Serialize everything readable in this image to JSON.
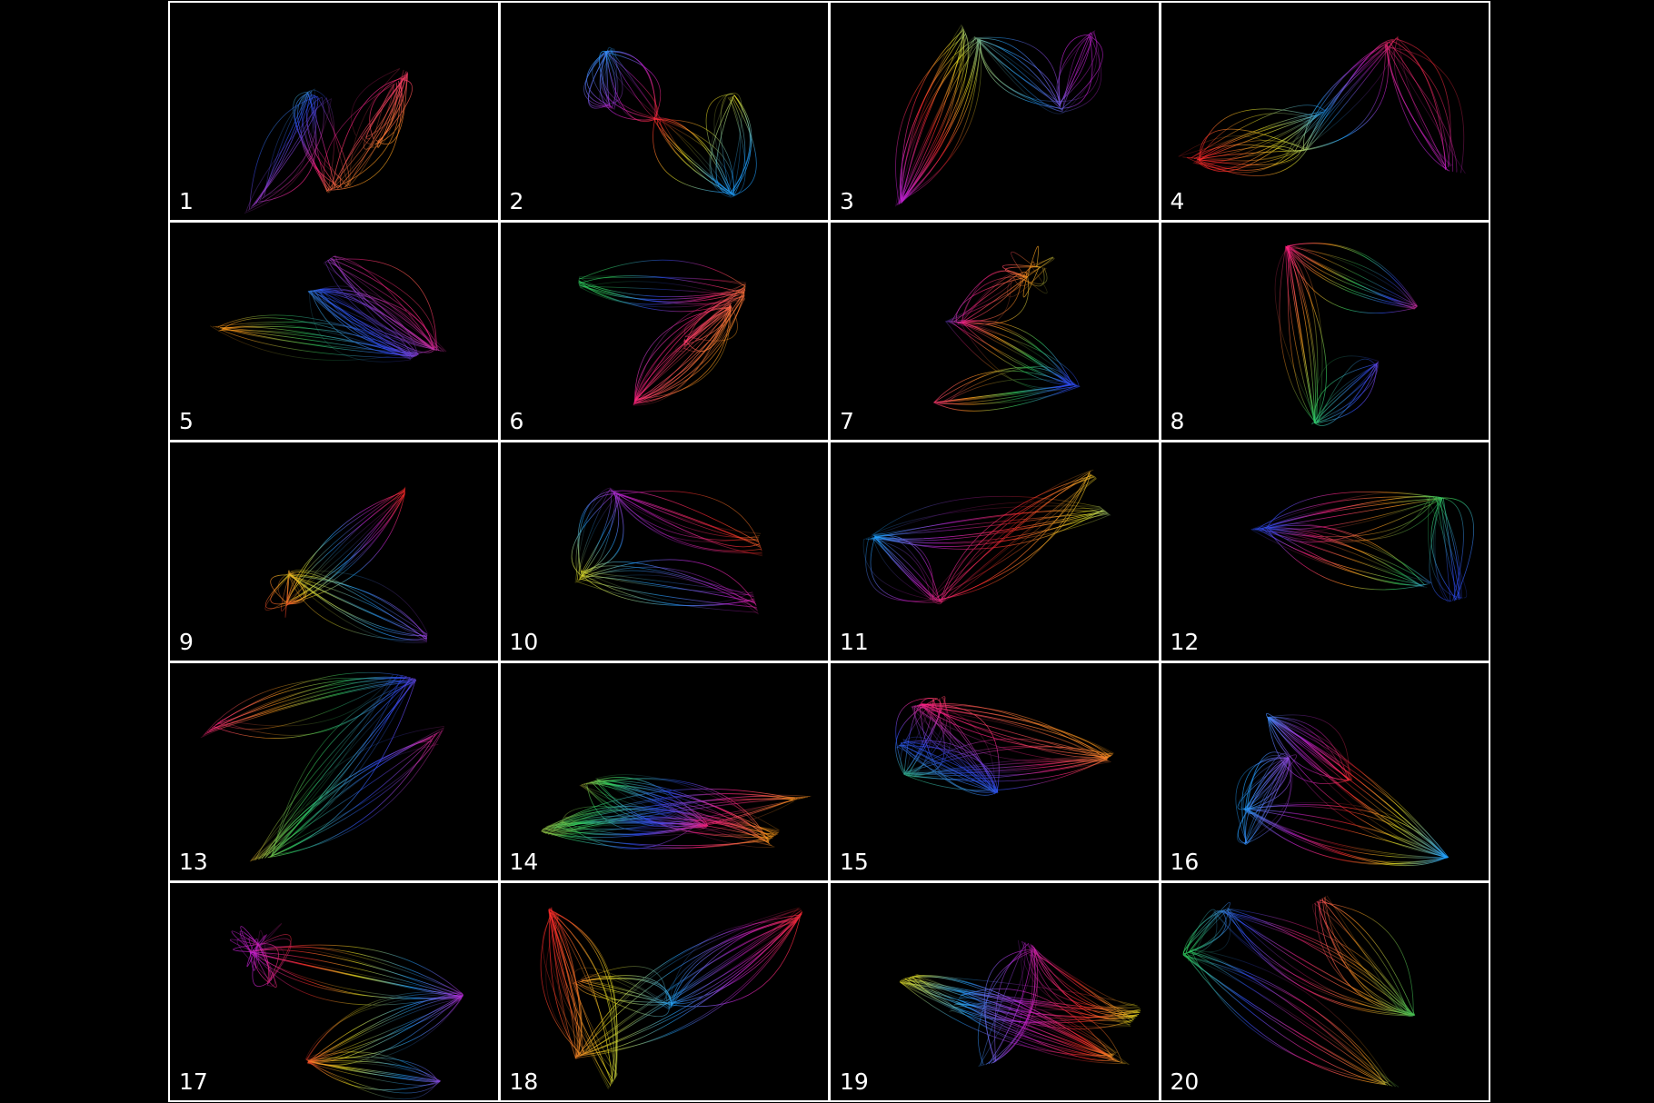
{
  "gallery": {
    "items": [
      {
        "label": "1"
      },
      {
        "label": "2"
      },
      {
        "label": "3"
      },
      {
        "label": "4"
      },
      {
        "label": "5"
      },
      {
        "label": "6"
      },
      {
        "label": "7"
      },
      {
        "label": "8"
      },
      {
        "label": "9"
      },
      {
        "label": "10"
      },
      {
        "label": "11"
      },
      {
        "label": "12"
      },
      {
        "label": "13"
      },
      {
        "label": "14"
      },
      {
        "label": "15"
      },
      {
        "label": "16"
      },
      {
        "label": "17"
      },
      {
        "label": "18"
      },
      {
        "label": "19"
      },
      {
        "label": "20"
      }
    ],
    "background_color": "#000000",
    "grid_line_color": "#ffffff",
    "ribbon_colors": [
      "#ff2a2a",
      "#ff9a1a",
      "#e8e020",
      "#30d060",
      "#20a0ff",
      "#3050ff",
      "#c020d0",
      "#ff2080"
    ]
  }
}
